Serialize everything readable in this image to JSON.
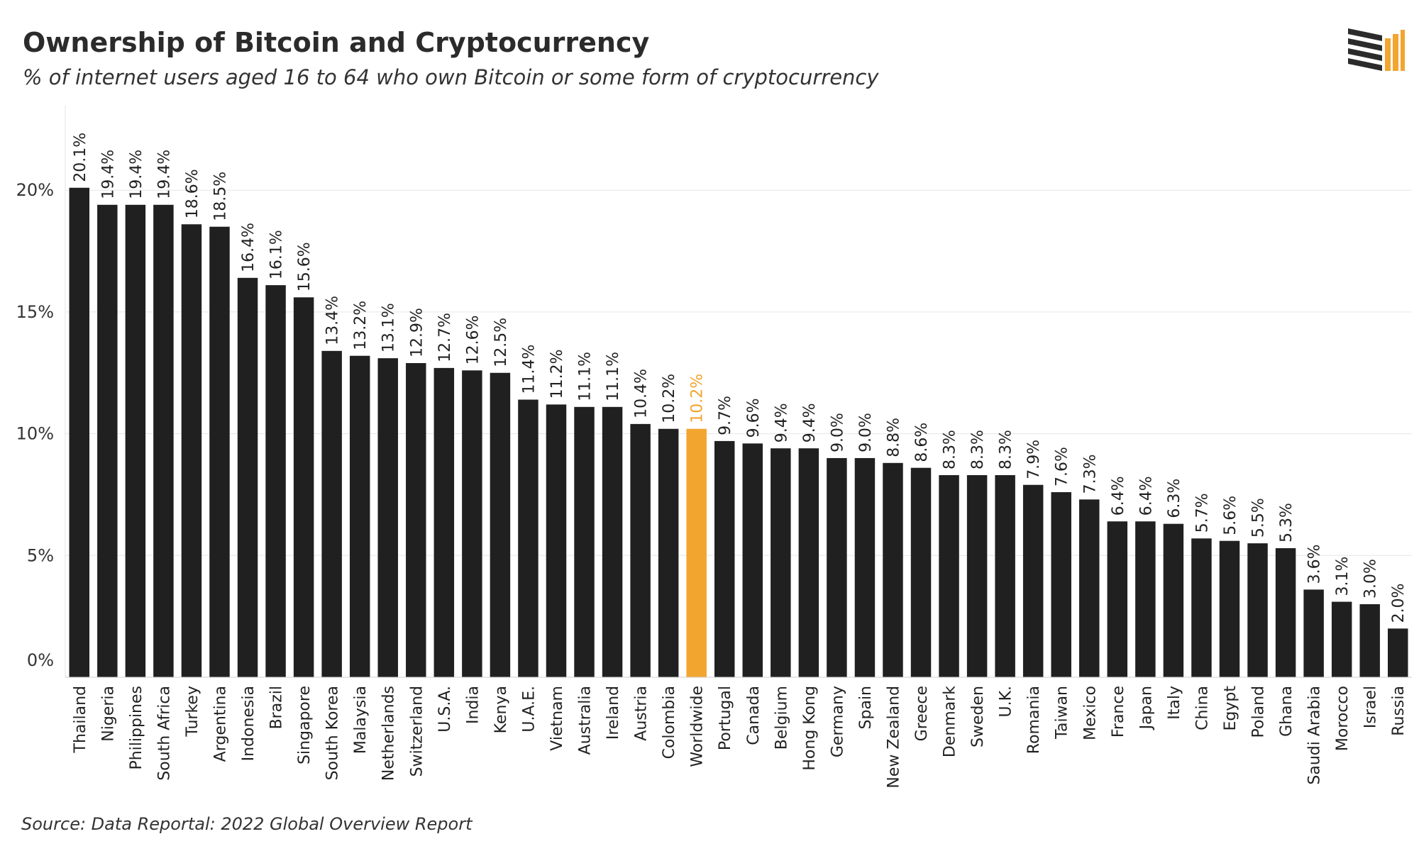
{
  "title": "Ownership of Bitcoin and Cryptocurrency",
  "subtitle": "% of internet users aged 16 to 64 who own Bitcoin or some form of cryptocurrency",
  "source": "Source: Data Reportal: 2022 Global Overview Report",
  "colors": {
    "bar": "#202020",
    "highlight": "#F2A52F",
    "grid": "#e6e6e6",
    "text": "#222222"
  },
  "chart_data": {
    "type": "bar",
    "title": "Ownership of Bitcoin and Cryptocurrency",
    "subtitle": "% of internet users aged 16 to 64 who own Bitcoin or some form of cryptocurrency",
    "xlabel": "",
    "ylabel": "",
    "ylim": [
      0,
      23.5
    ],
    "yticks": [
      0,
      5,
      10,
      15,
      20
    ],
    "ytick_labels": [
      "0%",
      "5%",
      "10%",
      "15%",
      "20%"
    ],
    "grid": true,
    "highlight_category": "Worldwide",
    "categories": [
      "Thailand",
      "Nigeria",
      "Philippines",
      "South Africa",
      "Turkey",
      "Argentina",
      "Indonesia",
      "Brazil",
      "Singapore",
      "South Korea",
      "Malaysia",
      "Netherlands",
      "Switzerland",
      "U.S.A.",
      "India",
      "Kenya",
      "U.A.E.",
      "Vietnam",
      "Australia",
      "Ireland",
      "Austria",
      "Colombia",
      "Worldwide",
      "Portugal",
      "Canada",
      "Belgium",
      "Hong Kong",
      "Germany",
      "Spain",
      "New Zealand",
      "Greece",
      "Denmark",
      "Sweden",
      "U.K.",
      "Romania",
      "Taiwan",
      "Mexico",
      "France",
      "Japan",
      "Italy",
      "China",
      "Egypt",
      "Poland",
      "Ghana",
      "Saudi Arabia",
      "Morocco",
      "Israel",
      "Russia"
    ],
    "values": [
      20.1,
      19.4,
      19.4,
      19.4,
      18.6,
      18.5,
      16.4,
      16.1,
      15.6,
      13.4,
      13.2,
      13.1,
      12.9,
      12.7,
      12.6,
      12.5,
      11.4,
      11.2,
      11.1,
      11.1,
      10.4,
      10.2,
      10.2,
      9.7,
      9.6,
      9.4,
      9.4,
      9.0,
      9.0,
      8.8,
      8.6,
      8.3,
      8.3,
      8.3,
      7.9,
      7.6,
      7.3,
      6.4,
      6.4,
      6.3,
      5.7,
      5.6,
      5.5,
      5.3,
      3.6,
      3.1,
      3.0,
      2.0
    ],
    "value_labels": [
      "20.1%",
      "19.4%",
      "19.4%",
      "19.4%",
      "18.6%",
      "18.5%",
      "16.4%",
      "16.1%",
      "15.6%",
      "13.4%",
      "13.2%",
      "13.1%",
      "12.9%",
      "12.7%",
      "12.6%",
      "12.5%",
      "11.4%",
      "11.2%",
      "11.1%",
      "11.1%",
      "10.4%",
      "10.2%",
      "10.2%",
      "9.7%",
      "9.6%",
      "9.4%",
      "9.4%",
      "9.0%",
      "9.0%",
      "8.8%",
      "8.6%",
      "8.3%",
      "8.3%",
      "8.3%",
      "7.9%",
      "7.6%",
      "7.3%",
      "6.4%",
      "6.4%",
      "6.3%",
      "5.7%",
      "5.6%",
      "5.5%",
      "5.3%",
      "3.6%",
      "3.1%",
      "3.0%",
      "2.0%"
    ]
  }
}
